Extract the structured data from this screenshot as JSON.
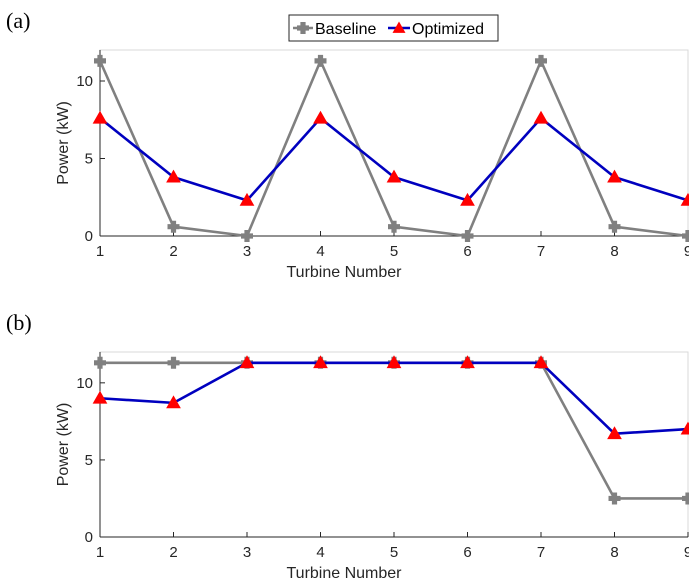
{
  "chart_data": [
    {
      "type": "line",
      "panel_label": "(a)",
      "categories": [
        1,
        2,
        3,
        4,
        5,
        6,
        7,
        8,
        9
      ],
      "series": [
        {
          "name": "Baseline",
          "color": "#808080",
          "marker": "plus-filled",
          "values": [
            11.3,
            0.6,
            0.0,
            11.3,
            0.6,
            0.0,
            11.3,
            0.6,
            0.0
          ]
        },
        {
          "name": "Optimized",
          "color": "#0000bf",
          "marker_color": "#ff0000",
          "marker": "triangle",
          "values": [
            7.6,
            3.8,
            2.3,
            7.6,
            3.8,
            2.3,
            7.6,
            3.8,
            2.3
          ]
        }
      ],
      "xlabel": "Turbine Number",
      "ylabel": "Power (kW)",
      "xlim": [
        1,
        9
      ],
      "ylim": [
        0,
        12
      ],
      "yticks": [
        0,
        5,
        10
      ],
      "grid": false,
      "legend": "top-center"
    },
    {
      "type": "line",
      "panel_label": "(b)",
      "categories": [
        1,
        2,
        3,
        4,
        5,
        6,
        7,
        8,
        9
      ],
      "series": [
        {
          "name": "Baseline",
          "color": "#808080",
          "marker": "plus-filled",
          "values": [
            11.3,
            11.3,
            11.3,
            11.3,
            11.3,
            11.3,
            11.3,
            2.5,
            2.5
          ]
        },
        {
          "name": "Optimized",
          "color": "#0000bf",
          "marker_color": "#ff0000",
          "marker": "triangle",
          "values": [
            9.0,
            8.7,
            11.3,
            11.3,
            11.3,
            11.3,
            11.3,
            6.7,
            7.0
          ]
        }
      ],
      "xlabel": "Turbine Number",
      "ylabel": "Power (kW)",
      "xlim": [
        1,
        9
      ],
      "ylim": [
        0,
        12
      ],
      "yticks": [
        0,
        5,
        10
      ],
      "grid": false,
      "legend": "none"
    }
  ]
}
